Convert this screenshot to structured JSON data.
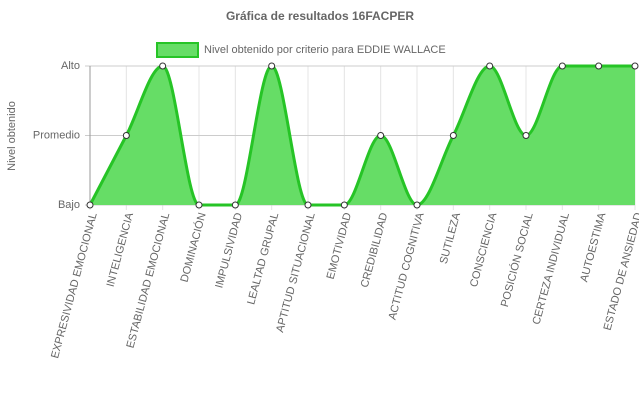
{
  "chart_data": {
    "type": "area",
    "title": "Gráfica de resultados 16FACPER",
    "y_label": "Nivel obtenido",
    "categories": [
      "EXPRESIVIDAD EMOCIONAL",
      "INTELIGENCIA",
      "ESTABILIDAD EMOCIONAL",
      "DOMINACIÓN",
      "IMPULSIVIDAD",
      "LEALTAD GRUPAL",
      "APTITUD SITUACIONAL",
      "EMOTIVIDAD",
      "CREDIBILIDAD",
      "ACTITUD COGNITIVA",
      "SUTILEZA",
      "CONSCIENCIA",
      "POSICIÓN SOCIAL",
      "CERTEZA INDIVIDUAL",
      "AUTOESTIMA",
      "ESTADO DE ANSIEDAD"
    ],
    "series": [
      {
        "name": "Nivel obtenido por criterio para EDDIE WALLACE",
        "color": "#26c426",
        "fill": "#66dd66",
        "values": [
          0,
          1,
          2,
          0,
          0,
          2,
          0,
          0,
          1,
          0,
          1,
          2,
          1,
          2,
          2,
          2
        ]
      }
    ],
    "ylim": [
      0,
      2
    ],
    "yticks": [
      {
        "value": 0,
        "label": "Bajo"
      },
      {
        "value": 1,
        "label": "Promedio"
      },
      {
        "value": 2,
        "label": "Alto"
      }
    ],
    "grid": true
  }
}
